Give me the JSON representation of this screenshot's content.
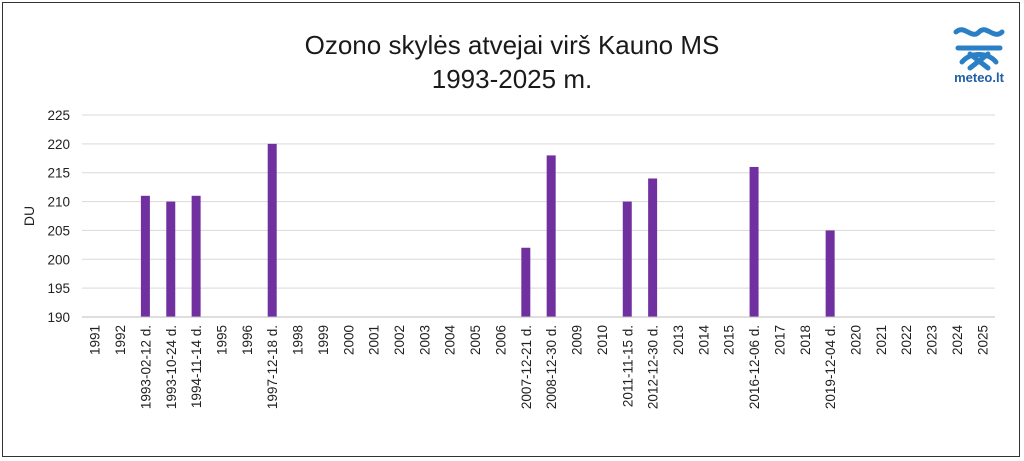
{
  "logo": {
    "icon": "meteo-waves-icon",
    "text": "meteo.lt",
    "color": "#2b7fc4"
  },
  "chart_data": {
    "type": "bar",
    "title": [
      "Ozono skylės atvejai virš Kauno MS",
      "1993-2025 m."
    ],
    "xlabel": "",
    "ylabel": "DU",
    "ylim": [
      190,
      225
    ],
    "yticks": [
      190,
      195,
      200,
      205,
      210,
      215,
      220,
      225
    ],
    "grid": true,
    "bar_color": "#7030a0",
    "categories": [
      "1991",
      "1992",
      "1993-02-12 d.",
      "1993-10-24 d.",
      "1994-11-14 d.",
      "1995",
      "1996",
      "1997-12-18 d.",
      "1998",
      "1999",
      "2000",
      "2001",
      "2002",
      "2003",
      "2004",
      "2005",
      "2006",
      "2007-12-21 d.",
      "2008-12-30 d.",
      "2009",
      "2010",
      "2011-11-15 d.",
      "2012-12-30 d.",
      "2013",
      "2014",
      "2015",
      "2016-12-06 d.",
      "2017",
      "2018",
      "2019-12-04 d.",
      "2020",
      "2021",
      "2022",
      "2023",
      "2024",
      "2025"
    ],
    "values": [
      null,
      null,
      211,
      210,
      211,
      null,
      null,
      220,
      null,
      null,
      null,
      null,
      null,
      null,
      null,
      null,
      null,
      202,
      218,
      null,
      null,
      210,
      214,
      null,
      null,
      null,
      216,
      null,
      null,
      205,
      null,
      null,
      null,
      null,
      null,
      null
    ]
  }
}
